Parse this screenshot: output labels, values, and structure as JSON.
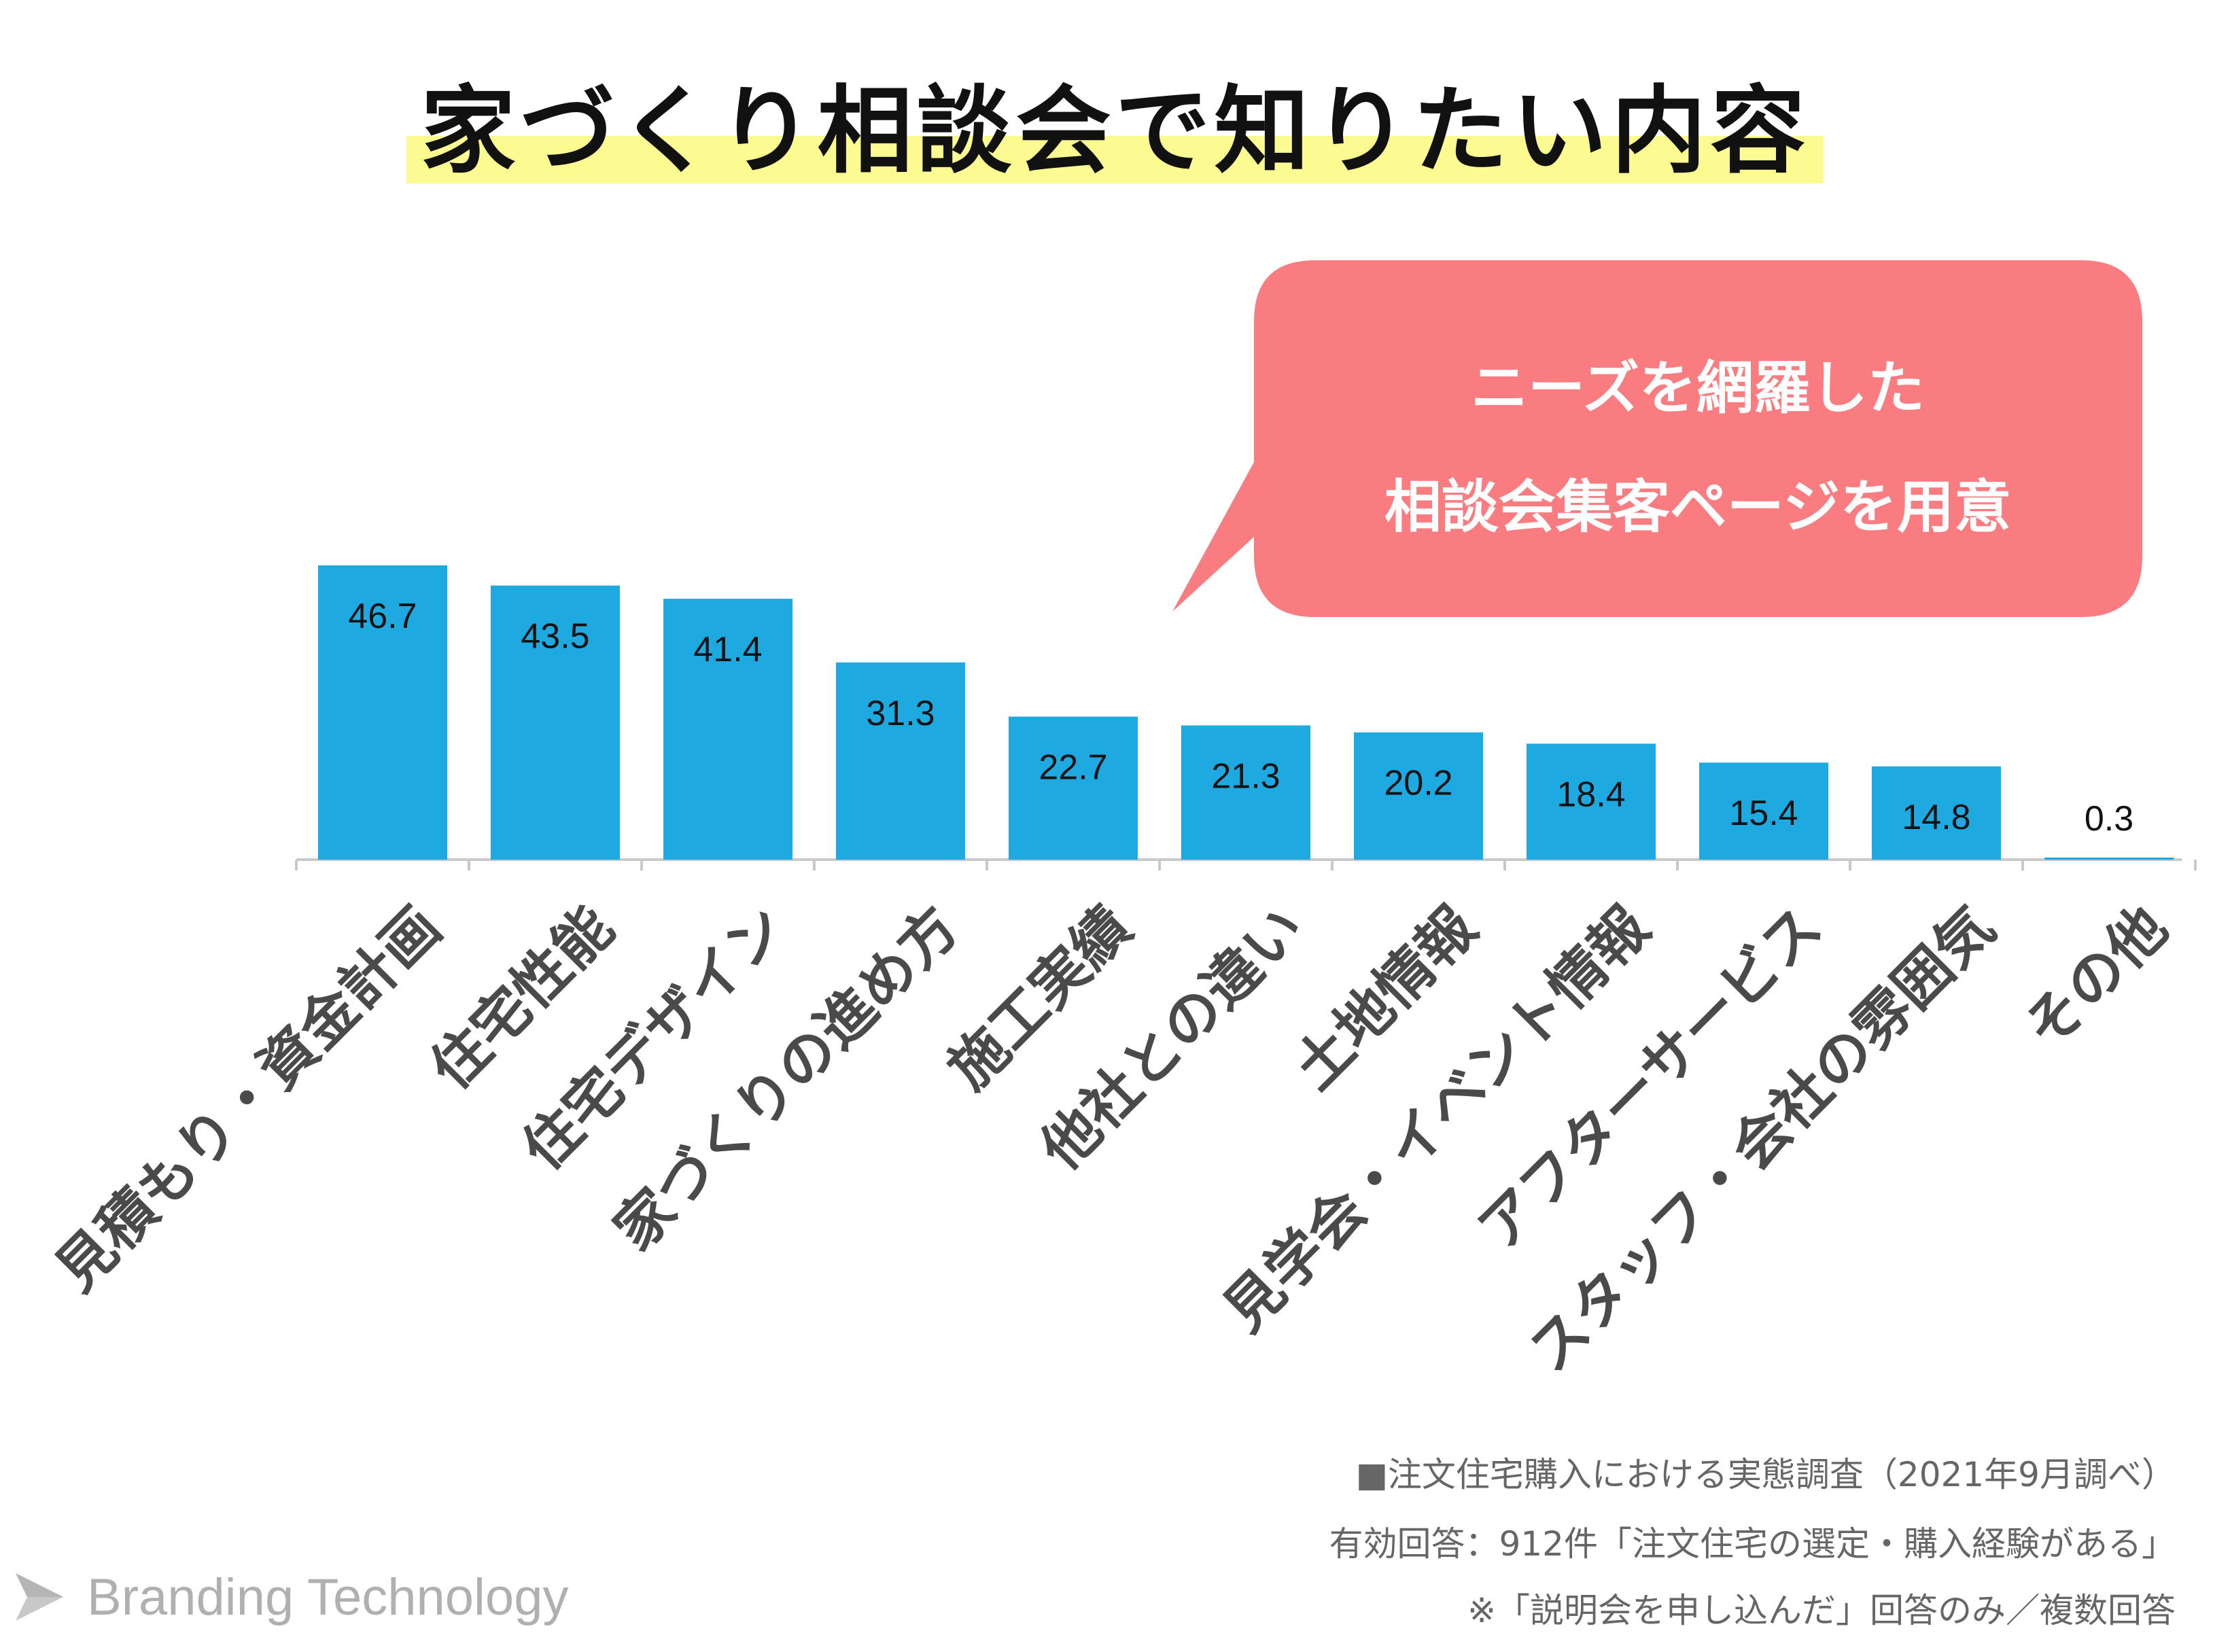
{
  "title": "家づくり相談会で知りたい内容",
  "callout": {
    "line1": "ニーズを網羅した",
    "line2": "相談会集客ページを用意"
  },
  "colors": {
    "bar": "#1eaae1",
    "callout": "#f97c80",
    "highlight": "#fbfb92"
  },
  "notes": {
    "line1": "■注文住宅購入における実態調査（2021年9月調べ）",
    "line2": "有効回答：912件「注文住宅の選定・購入経験がある」",
    "line3": "※「説明会を申し込んだ」回答のみ／複数回答"
  },
  "brand": {
    "name": "Branding Technology",
    "icon": "paper-plane-icon"
  },
  "chart_data": {
    "type": "bar",
    "title": "家づくり相談会で知りたい内容",
    "categories": [
      "見積もり・資金計画",
      "住宅性能",
      "住宅デザイン",
      "家づくりの進め方",
      "施工実績",
      "他社との違い",
      "土地情報",
      "見学会・イベント情報",
      "アフターサービス",
      "スタッフ・会社の雰囲気",
      "その他"
    ],
    "values": [
      46.7,
      43.5,
      41.4,
      31.3,
      22.7,
      21.3,
      20.2,
      18.4,
      15.4,
      14.8,
      0.3
    ],
    "value_labels": [
      "46.7",
      "43.5",
      "41.4",
      "31.3",
      "22.7",
      "21.3",
      "20.2",
      "18.4",
      "15.4",
      "14.8",
      "0.3"
    ],
    "xlabel": "",
    "ylabel": "",
    "ylim": [
      0,
      46.7
    ],
    "grid": false,
    "legend": "none"
  }
}
